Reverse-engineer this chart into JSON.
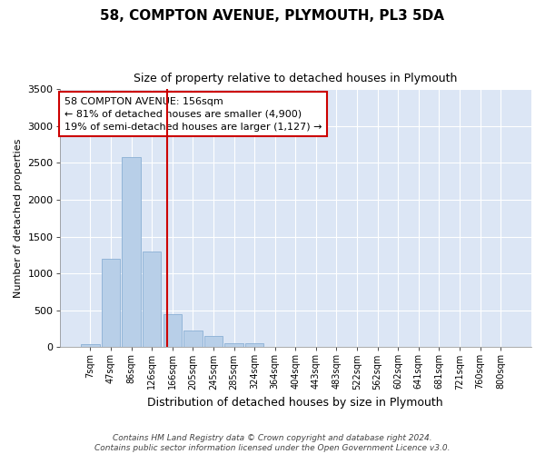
{
  "title": "58, COMPTON AVENUE, PLYMOUTH, PL3 5DA",
  "subtitle": "Size of property relative to detached houses in Plymouth",
  "xlabel": "Distribution of detached houses by size in Plymouth",
  "ylabel": "Number of detached properties",
  "footer_line1": "Contains HM Land Registry data © Crown copyright and database right 2024.",
  "footer_line2": "Contains public sector information licensed under the Open Government Licence v3.0.",
  "annotation_line1": "58 COMPTON AVENUE: 156sqm",
  "annotation_line2": "← 81% of detached houses are smaller (4,900)",
  "annotation_line3": "19% of semi-detached houses are larger (1,127) →",
  "bar_color": "#b8cfe8",
  "bar_edge_color": "#8aafd4",
  "vline_color": "#cc0000",
  "fig_bg_color": "#ffffff",
  "axes_bg_color": "#dce6f5",
  "grid_color": "#ffffff",
  "categories": [
    "7sqm",
    "47sqm",
    "86sqm",
    "126sqm",
    "166sqm",
    "205sqm",
    "245sqm",
    "285sqm",
    "324sqm",
    "364sqm",
    "404sqm",
    "443sqm",
    "483sqm",
    "522sqm",
    "562sqm",
    "602sqm",
    "641sqm",
    "681sqm",
    "721sqm",
    "760sqm",
    "800sqm"
  ],
  "values": [
    45,
    1200,
    2580,
    1300,
    450,
    230,
    150,
    55,
    55,
    0,
    0,
    0,
    0,
    0,
    0,
    0,
    0,
    0,
    0,
    0,
    0
  ],
  "vline_position": 3.75,
  "ylim": [
    0,
    3500
  ],
  "yticks": [
    0,
    500,
    1000,
    1500,
    2000,
    2500,
    3000,
    3500
  ]
}
